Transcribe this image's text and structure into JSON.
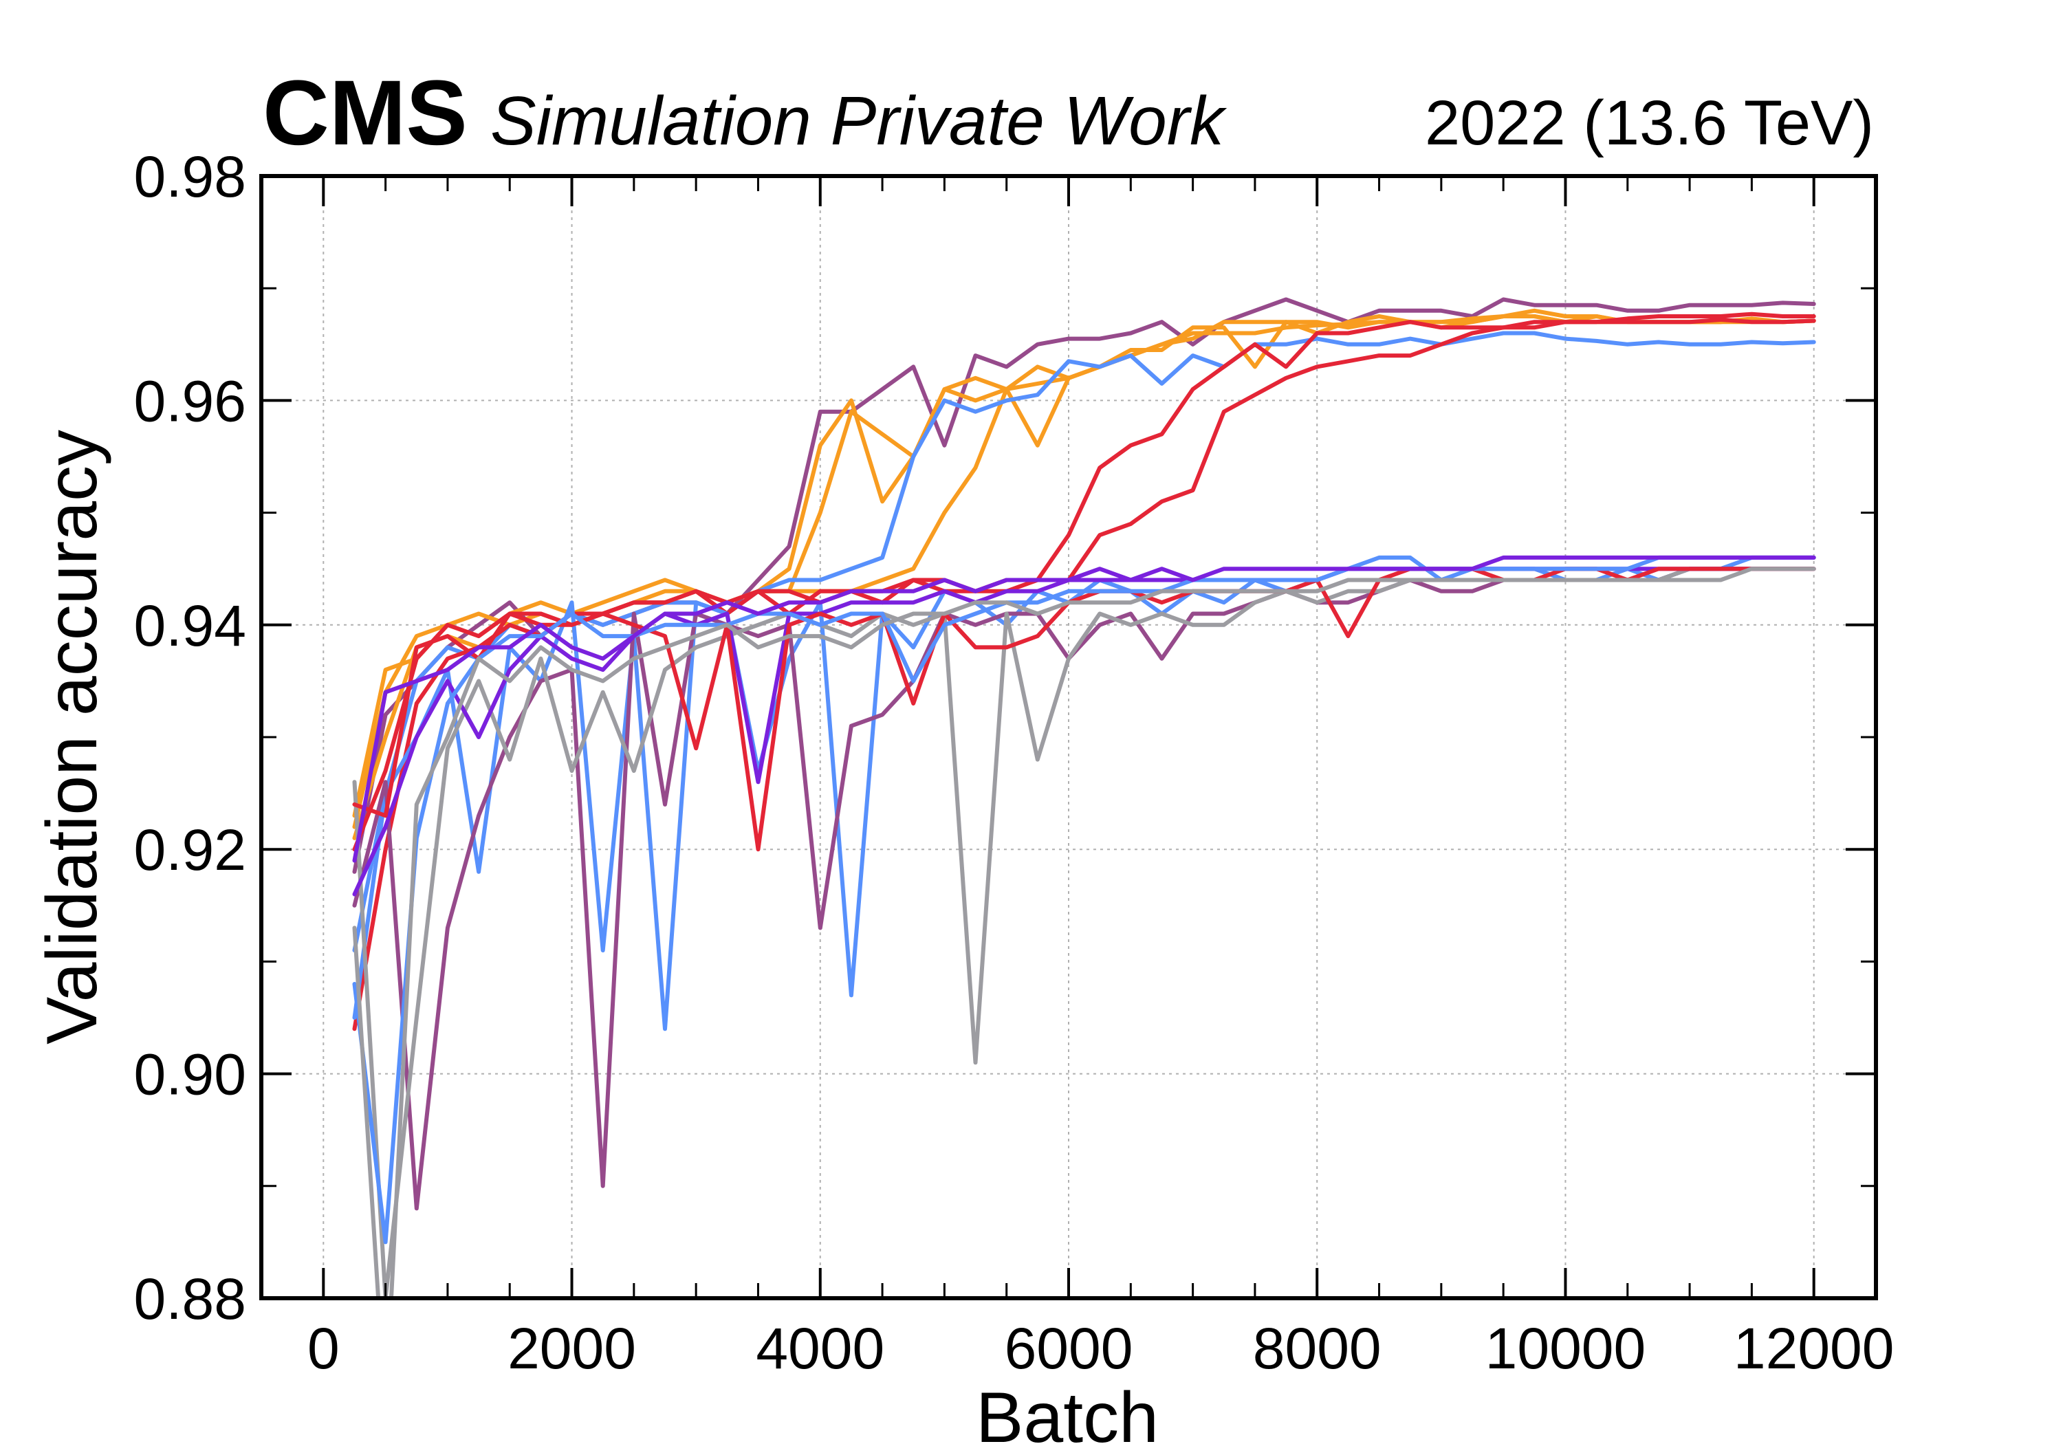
{
  "header": {
    "experiment": "CMS",
    "qualifier": "Simulation Private Work",
    "lumi_energy": "2022 (13.6 TeV)"
  },
  "colors": {
    "blue": "#5790fc",
    "orange": "#f89c20",
    "red": "#e42536",
    "purple": "#964a8b",
    "gray": "#9c9ca1",
    "violet": "#7a21dd",
    "grid": "#b0b0b0",
    "axis": "#000000"
  },
  "chart_data": {
    "type": "line",
    "xlabel": "Batch",
    "ylabel": "Validation accuracy",
    "xlim": [
      -500,
      12500
    ],
    "ylim": [
      0.88,
      0.98
    ],
    "xticks": [
      0,
      2000,
      4000,
      6000,
      8000,
      10000,
      12000
    ],
    "xtick_labels": [
      "0",
      "2000",
      "4000",
      "6000",
      "8000",
      "10000",
      "12000"
    ],
    "yticks": [
      0.88,
      0.9,
      0.92,
      0.94,
      0.96,
      0.98
    ],
    "ytick_labels": [
      "0.88",
      "0.90",
      "0.92",
      "0.94",
      "0.96",
      "0.98"
    ],
    "grid": true,
    "x": [
      250,
      500,
      750,
      1000,
      1250,
      1500,
      1750,
      2000,
      2250,
      2500,
      2750,
      3000,
      3250,
      3500,
      3750,
      4000,
      4250,
      4500,
      4750,
      5000,
      5250,
      5500,
      5750,
      6000,
      6250,
      6500,
      6750,
      7000,
      7250,
      7500,
      7750,
      8000,
      8250,
      8500,
      8750,
      9000,
      9250,
      9500,
      9750,
      10000,
      10250,
      10500,
      10750,
      11000,
      11250,
      11500,
      11750,
      12000
    ],
    "series": [
      {
        "color": "purple",
        "values": [
          0.918,
          0.932,
          0.935,
          0.938,
          0.94,
          0.942,
          0.939,
          0.941,
          0.94,
          0.941,
          0.942,
          0.942,
          0.941,
          0.944,
          0.947,
          0.959,
          0.959,
          0.961,
          0.963,
          0.956,
          0.964,
          0.963,
          0.965,
          0.9655,
          0.9655,
          0.966,
          0.967,
          0.965,
          0.967,
          0.968,
          0.969,
          0.968,
          0.967,
          0.968,
          0.968,
          0.968,
          0.9675,
          0.969,
          0.9685,
          0.9685,
          0.9685,
          0.968,
          0.968,
          0.9685,
          0.9685,
          0.9685,
          0.9687,
          0.9686
        ]
      },
      {
        "color": "orange",
        "values": [
          0.923,
          0.936,
          0.937,
          0.94,
          0.941,
          0.94,
          0.941,
          0.94,
          0.941,
          0.942,
          0.943,
          0.943,
          0.942,
          0.943,
          0.945,
          0.956,
          0.96,
          0.951,
          0.955,
          0.961,
          0.962,
          0.961,
          0.963,
          0.962,
          0.963,
          0.964,
          0.965,
          0.966,
          0.966,
          0.966,
          0.9665,
          0.9667,
          0.9668,
          0.967,
          0.967,
          0.967,
          0.9673,
          0.9675,
          0.968,
          0.9675,
          0.9675,
          0.967,
          0.967,
          0.967,
          0.967,
          0.967,
          0.967,
          0.9671
        ]
      },
      {
        "color": "orange",
        "values": [
          0.921,
          0.93,
          0.938,
          0.939,
          0.938,
          0.94,
          0.939,
          0.941,
          0.941,
          0.942,
          0.942,
          0.943,
          0.941,
          0.943,
          0.943,
          0.95,
          0.959,
          0.957,
          0.955,
          0.961,
          0.96,
          0.961,
          0.9615,
          0.962,
          0.963,
          0.9645,
          0.9645,
          0.9665,
          0.9665,
          0.963,
          0.967,
          0.966,
          0.967,
          0.9675,
          0.967,
          0.9665,
          0.967,
          0.9675,
          0.9675,
          0.967,
          0.9675,
          0.967,
          0.967,
          0.967,
          0.967,
          0.9672,
          0.967,
          0.9671
        ]
      },
      {
        "color": "orange",
        "values": [
          0.922,
          0.934,
          0.939,
          0.94,
          0.939,
          0.941,
          0.942,
          0.941,
          0.942,
          0.943,
          0.944,
          0.943,
          0.942,
          0.943,
          0.943,
          0.943,
          0.943,
          0.944,
          0.945,
          0.95,
          0.954,
          0.961,
          0.956,
          0.962,
          0.963,
          0.964,
          0.965,
          0.9655,
          0.967,
          0.967,
          0.967,
          0.967,
          0.9665,
          0.967,
          0.967,
          0.967,
          0.967,
          0.9675,
          0.9675,
          0.967,
          0.967,
          0.967,
          0.967,
          0.967,
          0.967,
          0.9673,
          0.967,
          0.9671
        ]
      },
      {
        "color": "blue",
        "values": [
          0.911,
          0.925,
          0.935,
          0.938,
          0.937,
          0.94,
          0.939,
          0.941,
          0.94,
          0.941,
          0.942,
          0.942,
          0.941,
          0.943,
          0.944,
          0.944,
          0.945,
          0.946,
          0.955,
          0.96,
          0.959,
          0.96,
          0.9605,
          0.9635,
          0.963,
          0.964,
          0.9615,
          0.964,
          0.963,
          0.965,
          0.965,
          0.9655,
          0.965,
          0.965,
          0.9655,
          0.965,
          0.9655,
          0.966,
          0.966,
          0.9655,
          0.9653,
          0.965,
          0.9652,
          0.965,
          0.965,
          0.9652,
          0.9651,
          0.9652
        ]
      },
      {
        "color": "red",
        "values": [
          0.904,
          0.92,
          0.933,
          0.937,
          0.938,
          0.94,
          0.939,
          0.941,
          0.941,
          0.942,
          0.942,
          0.943,
          0.941,
          0.943,
          0.941,
          0.943,
          0.943,
          0.942,
          0.944,
          0.944,
          0.943,
          0.943,
          0.944,
          0.948,
          0.954,
          0.956,
          0.957,
          0.961,
          0.963,
          0.965,
          0.963,
          0.966,
          0.966,
          0.9665,
          0.967,
          0.9665,
          0.9665,
          0.9665,
          0.967,
          0.967,
          0.967,
          0.967,
          0.967,
          0.967,
          0.9672,
          0.967,
          0.967,
          0.9671
        ]
      },
      {
        "color": "red",
        "values": [
          0.92,
          0.927,
          0.937,
          0.94,
          0.939,
          0.941,
          0.941,
          0.94,
          0.941,
          0.942,
          0.942,
          0.943,
          0.942,
          0.943,
          0.943,
          0.942,
          0.943,
          0.943,
          0.944,
          0.943,
          0.943,
          0.944,
          0.944,
          0.944,
          0.948,
          0.949,
          0.951,
          0.952,
          0.959,
          0.9605,
          0.962,
          0.963,
          0.9635,
          0.964,
          0.964,
          0.965,
          0.966,
          0.9665,
          0.9665,
          0.967,
          0.967,
          0.9673,
          0.9675,
          0.9675,
          0.9675,
          0.9677,
          0.9675,
          0.9675
        ]
      },
      {
        "color": "blue",
        "values": [
          0.905,
          0.925,
          0.93,
          0.936,
          0.918,
          0.938,
          0.935,
          0.942,
          0.911,
          0.939,
          0.904,
          0.942,
          0.941,
          0.927,
          0.937,
          0.942,
          0.907,
          0.941,
          0.938,
          0.943,
          0.942,
          0.94,
          0.943,
          0.942,
          0.944,
          0.943,
          0.941,
          0.943,
          0.942,
          0.944,
          0.943,
          0.944,
          0.945,
          0.946,
          0.946,
          0.944,
          0.945,
          0.945,
          0.945,
          0.944,
          0.944,
          0.945,
          0.944,
          0.945,
          0.945,
          0.946,
          0.946,
          0.946
        ]
      },
      {
        "color": "purple",
        "values": [
          0.915,
          0.926,
          0.888,
          0.913,
          0.923,
          0.93,
          0.935,
          0.936,
          0.89,
          0.941,
          0.924,
          0.941,
          0.94,
          0.939,
          0.94,
          0.913,
          0.931,
          0.932,
          0.935,
          0.941,
          0.94,
          0.941,
          0.941,
          0.937,
          0.94,
          0.941,
          0.937,
          0.941,
          0.941,
          0.942,
          0.943,
          0.942,
          0.942,
          0.943,
          0.944,
          0.943,
          0.943,
          0.944,
          0.944,
          0.944,
          0.944,
          0.944,
          0.944,
          0.945,
          0.945,
          0.945,
          0.945,
          0.945
        ]
      },
      {
        "color": "gray",
        "values": [
          0.926,
          0.88,
          0.905,
          0.929,
          0.935,
          0.928,
          0.937,
          0.927,
          0.934,
          0.927,
          0.936,
          0.938,
          0.939,
          0.94,
          0.941,
          0.94,
          0.939,
          0.941,
          0.94,
          0.941,
          0.901,
          0.941,
          0.928,
          0.937,
          0.941,
          0.94,
          0.941,
          0.94,
          0.94,
          0.942,
          0.943,
          0.942,
          0.943,
          0.943,
          0.944,
          0.944,
          0.944,
          0.944,
          0.944,
          0.944,
          0.944,
          0.944,
          0.944,
          0.945,
          0.945,
          0.945,
          0.945,
          0.945
        ]
      },
      {
        "color": "violet",
        "values": [
          0.916,
          0.922,
          0.93,
          0.935,
          0.93,
          0.936,
          0.939,
          0.937,
          0.936,
          0.939,
          0.941,
          0.94,
          0.941,
          0.926,
          0.941,
          0.941,
          0.942,
          0.942,
          0.942,
          0.943,
          0.942,
          0.943,
          0.943,
          0.944,
          0.944,
          0.944,
          0.944,
          0.944,
          0.944,
          0.944,
          0.944,
          0.944,
          0.945,
          0.945,
          0.945,
          0.945,
          0.945,
          0.945,
          0.945,
          0.945,
          0.945,
          0.945,
          0.945,
          0.945,
          0.945,
          0.945,
          0.945,
          0.945
        ]
      },
      {
        "color": "red",
        "values": [
          0.924,
          0.923,
          0.938,
          0.939,
          0.937,
          0.941,
          0.94,
          0.94,
          0.941,
          0.94,
          0.939,
          0.929,
          0.94,
          0.92,
          0.94,
          0.941,
          0.94,
          0.941,
          0.933,
          0.941,
          0.938,
          0.938,
          0.939,
          0.942,
          0.943,
          0.943,
          0.942,
          0.943,
          0.943,
          0.943,
          0.943,
          0.944,
          0.939,
          0.944,
          0.945,
          0.945,
          0.945,
          0.944,
          0.944,
          0.945,
          0.945,
          0.944,
          0.945,
          0.945,
          0.945,
          0.945,
          0.945,
          0.945
        ]
      },
      {
        "color": "blue",
        "values": [
          0.908,
          0.885,
          0.921,
          0.933,
          0.937,
          0.939,
          0.939,
          0.941,
          0.939,
          0.939,
          0.94,
          0.94,
          0.94,
          0.941,
          0.941,
          0.94,
          0.941,
          0.941,
          0.935,
          0.94,
          0.941,
          0.942,
          0.942,
          0.943,
          0.943,
          0.943,
          0.943,
          0.944,
          0.944,
          0.944,
          0.944,
          0.944,
          0.945,
          0.945,
          0.945,
          0.945,
          0.945,
          0.945,
          0.945,
          0.945,
          0.945,
          0.945,
          0.946,
          0.946,
          0.946,
          0.946,
          0.946,
          0.946
        ]
      },
      {
        "color": "gray",
        "values": [
          0.913,
          0.87,
          0.924,
          0.93,
          0.937,
          0.935,
          0.938,
          0.936,
          0.935,
          0.937,
          0.938,
          0.939,
          0.94,
          0.938,
          0.939,
          0.939,
          0.938,
          0.94,
          0.941,
          0.941,
          0.942,
          0.942,
          0.941,
          0.942,
          0.942,
          0.942,
          0.943,
          0.943,
          0.943,
          0.943,
          0.943,
          0.943,
          0.944,
          0.944,
          0.944,
          0.944,
          0.944,
          0.944,
          0.944,
          0.944,
          0.944,
          0.944,
          0.944,
          0.944,
          0.944,
          0.945,
          0.945,
          0.945
        ]
      },
      {
        "color": "violet",
        "values": [
          0.919,
          0.934,
          0.935,
          0.936,
          0.938,
          0.938,
          0.94,
          0.938,
          0.937,
          0.939,
          0.941,
          0.941,
          0.942,
          0.941,
          0.942,
          0.942,
          0.943,
          0.943,
          0.943,
          0.944,
          0.943,
          0.944,
          0.944,
          0.944,
          0.945,
          0.944,
          0.945,
          0.944,
          0.945,
          0.945,
          0.945,
          0.945,
          0.945,
          0.945,
          0.945,
          0.945,
          0.945,
          0.946,
          0.946,
          0.946,
          0.946,
          0.946,
          0.946,
          0.946,
          0.946,
          0.946,
          0.946,
          0.946
        ]
      }
    ]
  }
}
